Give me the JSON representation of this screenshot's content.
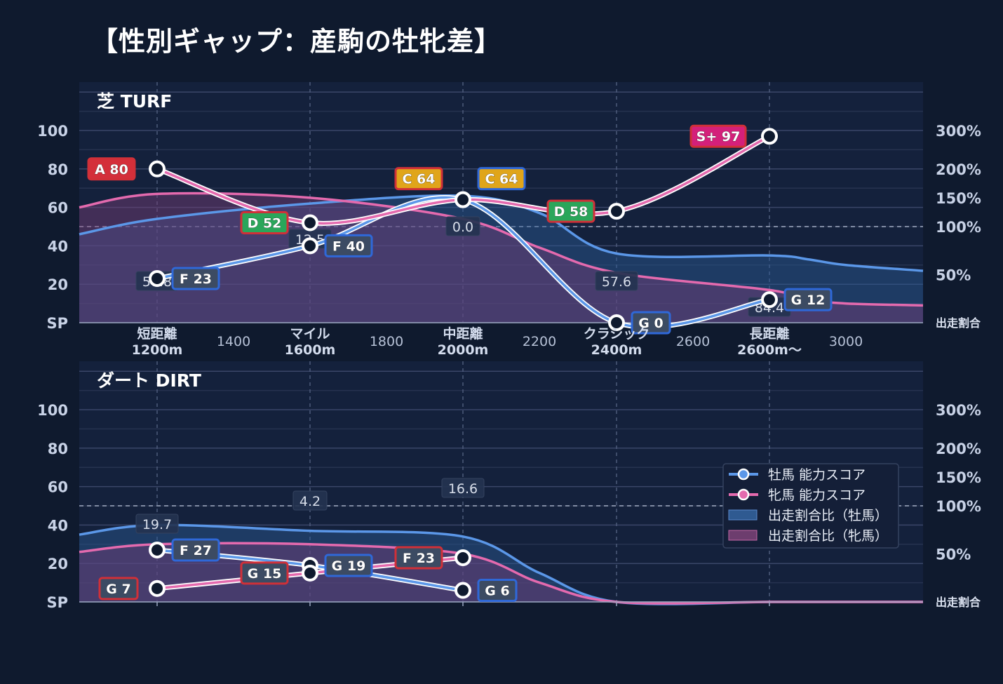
{
  "title": "【性別ギャップ：産駒の牡牝差】",
  "colors": {
    "background": "#0f1a2e",
    "plot_bg": "#14213c",
    "male": "#5b97e8",
    "female": "#e46aae",
    "male_fill": "#2b5a95",
    "female_fill": "#7a3f78",
    "grade_S_plus": "#d4207a",
    "grade_A": "#d42f3a",
    "grade_C": "#e0a51a",
    "grade_D": "#2aa65a",
    "grade_F_G": "#3c4b63",
    "badge_border_male": "#2f68d8",
    "badge_border_female": "#d03038"
  },
  "chart_data": [
    {
      "type": "line",
      "title": "芝 TURF",
      "ylabel": "SP",
      "y2label": "出走割合",
      "ylim": [
        0,
        100
      ],
      "yticks": [
        "SP",
        "20",
        "40",
        "60",
        "80",
        "100"
      ],
      "y2ticks": [
        "出走割合",
        "50%",
        "100%",
        "150%",
        "200%",
        "300%"
      ],
      "x_categories": [
        {
          "top": "短距離",
          "bottom": "1200m"
        },
        {
          "top": "マイル",
          "bottom": "1600m"
        },
        {
          "top": "中距離",
          "bottom": "2000m"
        },
        {
          "top": "クラシック",
          "bottom": "2400m"
        },
        {
          "top": "長距離",
          "bottom": "2600m〜"
        }
      ],
      "x_numeric_ticks": [
        "1400",
        "1800",
        "2200",
        "2600",
        "3000"
      ],
      "male_scores": [
        {
          "distance": 1200,
          "score": 23,
          "label": "F 23",
          "grade": "F"
        },
        {
          "distance": 1600,
          "score": 40,
          "label": "F 40",
          "grade": "F"
        },
        {
          "distance": 2000,
          "score": 64,
          "label": "C 64",
          "grade": "C"
        },
        {
          "distance": 2400,
          "score": 0,
          "label": "G 0",
          "grade": "G"
        },
        {
          "distance": 2600,
          "score": 12,
          "label": "G 12",
          "grade": "G"
        }
      ],
      "female_scores": [
        {
          "distance": 1200,
          "score": 80,
          "label": "A 80",
          "grade": "A"
        },
        {
          "distance": 1600,
          "score": 52,
          "label": "D 52",
          "grade": "D"
        },
        {
          "distance": 2000,
          "score": 64,
          "label": "C 64",
          "grade": "C"
        },
        {
          "distance": 2400,
          "score": 58,
          "label": "D 58",
          "grade": "D"
        },
        {
          "distance": 2600,
          "score": 97,
          "label": "S+ 97",
          "grade": "S+"
        }
      ],
      "ratio_labels": [
        {
          "distance": 1200,
          "value": "57.8"
        },
        {
          "distance": 1600,
          "value": "12.5"
        },
        {
          "distance": 2000,
          "value": "0.0"
        },
        {
          "distance": 2400,
          "value": "57.6"
        },
        {
          "distance": 2600,
          "value": "84.4"
        }
      ],
      "male_ratio_curve_sp": [
        [
          1000,
          46
        ],
        [
          1200,
          54
        ],
        [
          1600,
          62
        ],
        [
          2000,
          66
        ],
        [
          2200,
          57
        ],
        [
          2400,
          36
        ],
        [
          2600,
          35
        ],
        [
          2800,
          33
        ],
        [
          3000,
          30
        ],
        [
          3200,
          27
        ]
      ],
      "female_ratio_curve_sp": [
        [
          1000,
          60
        ],
        [
          1200,
          67
        ],
        [
          1600,
          65
        ],
        [
          2000,
          54
        ],
        [
          2200,
          39
        ],
        [
          2400,
          26
        ],
        [
          2600,
          17
        ],
        [
          2800,
          12
        ],
        [
          3000,
          10
        ],
        [
          3200,
          9
        ]
      ]
    },
    {
      "type": "line",
      "title": "ダート DIRT",
      "ylabel": "SP",
      "y2label": "出走割合",
      "ylim": [
        0,
        100
      ],
      "yticks": [
        "SP",
        "20",
        "40",
        "60",
        "80",
        "100"
      ],
      "y2ticks": [
        "出走割合",
        "50%",
        "100%",
        "150%",
        "200%",
        "300%"
      ],
      "male_scores": [
        {
          "distance": 1200,
          "score": 27,
          "label": "F 27",
          "grade": "F"
        },
        {
          "distance": 1600,
          "score": 19,
          "label": "G 19",
          "grade": "G"
        },
        {
          "distance": 2000,
          "score": 6,
          "label": "G 6",
          "grade": "G"
        }
      ],
      "female_scores": [
        {
          "distance": 1200,
          "score": 7,
          "label": "G 7",
          "grade": "G"
        },
        {
          "distance": 1600,
          "score": 15,
          "label": "G 15",
          "grade": "G"
        },
        {
          "distance": 2000,
          "score": 23,
          "label": "F 23",
          "grade": "F"
        }
      ],
      "ratio_labels": [
        {
          "distance": 1200,
          "value": "19.7"
        },
        {
          "distance": 1600,
          "value": "4.2"
        },
        {
          "distance": 2000,
          "value": "16.6"
        }
      ],
      "male_ratio_curve_sp": [
        [
          1000,
          35
        ],
        [
          1200,
          40
        ],
        [
          1600,
          37
        ],
        [
          2000,
          34
        ],
        [
          2200,
          15
        ],
        [
          2400,
          0
        ],
        [
          2600,
          0
        ],
        [
          3000,
          0
        ],
        [
          3200,
          0
        ]
      ],
      "female_ratio_curve_sp": [
        [
          1000,
          26
        ],
        [
          1200,
          30
        ],
        [
          1600,
          30
        ],
        [
          2000,
          25
        ],
        [
          2200,
          10
        ],
        [
          2400,
          0
        ],
        [
          2600,
          0
        ],
        [
          3000,
          0
        ],
        [
          3200,
          0
        ]
      ]
    }
  ],
  "legend": {
    "items": [
      {
        "label": "牡馬 能力スコア",
        "kind": "male-line"
      },
      {
        "label": "牝馬 能力スコア",
        "kind": "female-line"
      },
      {
        "label": "出走割合比（牡馬）",
        "kind": "male-area"
      },
      {
        "label": "出走割合比（牝馬）",
        "kind": "female-area"
      }
    ]
  }
}
